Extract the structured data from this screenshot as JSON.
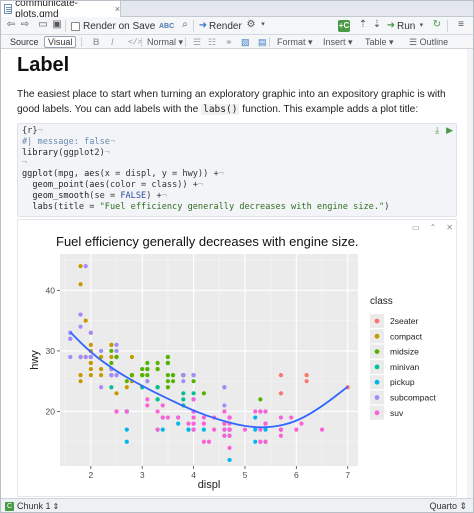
{
  "tab": {
    "filename": "communicate-plots.qmd",
    "close": "×"
  },
  "toolbar": {
    "render_on_save": "Render on Save",
    "render": "Render",
    "run": "Run",
    "abc": "ABC"
  },
  "editor_modes": {
    "source": "Source",
    "visual": "Visual"
  },
  "format_bar": {
    "bold": "B",
    "italic": "I",
    "underline": "U",
    "code": "</>",
    "style": "Normal",
    "format": "Format",
    "insert": "Insert",
    "table": "Table",
    "outline": "Outline"
  },
  "doc": {
    "heading": "Label",
    "para_pre": "The easiest place to start when turning an exploratory graphic into an expository graphic is with good labels. You can add labels with the ",
    "para_code": "labs()",
    "para_post": " function. This example adds a plot title:"
  },
  "code": {
    "header": "{r}",
    "line1": "#| message: false",
    "line2a": "library",
    "line2b": "(ggplot2)",
    "line4a": "ggplot",
    "line4b": "(mpg, ",
    "line4c": "aes",
    "line4d": "(x = displ, y = hwy)) +",
    "line5a": "  geom_point",
    "line5b": "(",
    "line5c": "aes",
    "line5d": "(color = class)) +",
    "line6a": "  geom_smooth",
    "line6b": "(se = ",
    "line6c": "FALSE",
    "line6d": ") +",
    "line7a": "  labs",
    "line7b": "(title = ",
    "line7c": "\"Fuel efficiency generally decreases with engine size.\"",
    "line7d": ")"
  },
  "status": {
    "chunk": "Chunk 1",
    "language": "Quarto"
  },
  "chart_data": {
    "type": "scatter",
    "title": "Fuel efficiency generally decreases with engine size.",
    "xlabel": "displ",
    "ylabel": "hwy",
    "xlim": [
      1.4,
      7.2
    ],
    "ylim": [
      11,
      46
    ],
    "xticks": [
      2,
      3,
      4,
      5,
      6,
      7
    ],
    "yticks": [
      20,
      30,
      40
    ],
    "legend_title": "class",
    "legend_position": "right",
    "series": [
      {
        "name": "2seater",
        "color": "#F8766D",
        "points": [
          [
            5.7,
            26
          ],
          [
            5.7,
            23
          ],
          [
            6.2,
            26
          ],
          [
            6.2,
            25
          ],
          [
            7.0,
            24
          ]
        ]
      },
      {
        "name": "compact",
        "color": "#C49A00",
        "points": [
          [
            1.8,
            29
          ],
          [
            1.8,
            29
          ],
          [
            2.0,
            31
          ],
          [
            2.0,
            30
          ],
          [
            2.8,
            26
          ],
          [
            2.8,
            26
          ],
          [
            3.1,
            27
          ],
          [
            1.8,
            26
          ],
          [
            1.8,
            25
          ],
          [
            2.0,
            28
          ],
          [
            2.0,
            27
          ],
          [
            2.8,
            25
          ],
          [
            2.2,
            27
          ],
          [
            2.2,
            29
          ],
          [
            2.4,
            31
          ],
          [
            2.4,
            31
          ],
          [
            3.0,
            26
          ],
          [
            3.0,
            26
          ],
          [
            3.3,
            27
          ],
          [
            1.8,
            44
          ],
          [
            1.8,
            41
          ],
          [
            1.9,
            29
          ],
          [
            2.0,
            26
          ],
          [
            2.0,
            28
          ],
          [
            2.5,
            29
          ],
          [
            2.5,
            29
          ],
          [
            2.5,
            23
          ],
          [
            2.7,
            24
          ],
          [
            2.8,
            29
          ],
          [
            2.2,
            26
          ],
          [
            2.4,
            29
          ],
          [
            2.4,
            27
          ],
          [
            3.0,
            24
          ],
          [
            2.0,
            33
          ],
          [
            1.9,
            35
          ]
        ]
      },
      {
        "name": "midsize",
        "color": "#53B400",
        "points": [
          [
            2.8,
            26
          ],
          [
            3.1,
            27
          ],
          [
            3.1,
            28
          ],
          [
            2.4,
            27
          ],
          [
            2.4,
            30
          ],
          [
            3.1,
            26
          ],
          [
            3.5,
            29
          ],
          [
            3.6,
            26
          ],
          [
            3.5,
            28
          ],
          [
            3.6,
            26
          ],
          [
            3.8,
            26
          ],
          [
            3.8,
            26
          ],
          [
            4.0,
            26
          ],
          [
            2.5,
            29
          ],
          [
            2.5,
            29
          ],
          [
            3.5,
            28
          ],
          [
            3.6,
            25
          ],
          [
            3.5,
            28
          ],
          [
            3.5,
            29
          ],
          [
            3.3,
            27
          ],
          [
            3.0,
            26
          ],
          [
            3.5,
            24
          ],
          [
            4.2,
            23
          ],
          [
            4.6,
            24
          ],
          [
            5.3,
            22
          ],
          [
            2.4,
            28
          ],
          [
            2.4,
            26
          ],
          [
            3.0,
            26
          ],
          [
            3.5,
            25
          ],
          [
            3.3,
            24
          ],
          [
            3.8,
            26
          ],
          [
            3.8,
            26
          ],
          [
            4.0,
            25
          ],
          [
            2.4,
            26
          ],
          [
            2.7,
            25
          ],
          [
            3.1,
            25
          ],
          [
            3.5,
            26
          ],
          [
            3.3,
            28
          ],
          [
            3.0,
            27
          ],
          [
            3.5,
            28
          ]
        ]
      },
      {
        "name": "minivan",
        "color": "#00C094",
        "points": [
          [
            2.4,
            24
          ],
          [
            3.0,
            24
          ],
          [
            3.3,
            22
          ],
          [
            3.3,
            22
          ],
          [
            3.3,
            24
          ],
          [
            3.3,
            24
          ],
          [
            3.3,
            17
          ],
          [
            3.8,
            22
          ],
          [
            3.8,
            21
          ],
          [
            3.8,
            23
          ],
          [
            4.0,
            23
          ]
        ]
      },
      {
        "name": "pickup",
        "color": "#00B6EB",
        "points": [
          [
            2.7,
            20
          ],
          [
            2.7,
            17
          ],
          [
            2.7,
            20
          ],
          [
            3.4,
            19
          ],
          [
            3.4,
            17
          ],
          [
            4.0,
            17
          ],
          [
            4.7,
            17
          ],
          [
            4.7,
            16
          ],
          [
            4.7,
            17
          ],
          [
            5.7,
            17
          ],
          [
            3.7,
            19
          ],
          [
            3.7,
            18
          ],
          [
            3.9,
            17
          ],
          [
            3.9,
            17
          ],
          [
            4.7,
            19
          ],
          [
            4.7,
            12
          ],
          [
            4.7,
            17
          ],
          [
            5.2,
            17
          ],
          [
            5.2,
            15
          ],
          [
            4.2,
            17
          ],
          [
            4.6,
            17
          ],
          [
            4.6,
            16
          ],
          [
            5.4,
            17
          ],
          [
            5.4,
            15
          ],
          [
            2.7,
            15
          ],
          [
            2.7,
            20
          ],
          [
            4.0,
            20
          ],
          [
            4.0,
            22
          ],
          [
            4.7,
            17
          ],
          [
            5.2,
            19
          ]
        ]
      },
      {
        "name": "subcompact",
        "color": "#A58AFF",
        "points": [
          [
            1.6,
            33
          ],
          [
            1.6,
            32
          ],
          [
            1.6,
            32
          ],
          [
            1.6,
            29
          ],
          [
            1.6,
            32
          ],
          [
            1.8,
            34
          ],
          [
            1.8,
            36
          ],
          [
            1.8,
            36
          ],
          [
            2.0,
            29
          ],
          [
            2.4,
            26
          ],
          [
            2.4,
            27
          ],
          [
            2.5,
            30
          ],
          [
            2.5,
            31
          ],
          [
            2.5,
            26
          ],
          [
            3.8,
            26
          ],
          [
            3.8,
            25
          ],
          [
            4.0,
            26
          ],
          [
            4.6,
            24
          ],
          [
            4.6,
            21
          ],
          [
            5.4,
            20
          ],
          [
            2.2,
            24
          ],
          [
            2.5,
            26
          ],
          [
            2.2,
            30
          ],
          [
            2.0,
            33
          ],
          [
            1.9,
            44
          ],
          [
            1.9,
            29
          ],
          [
            2.0,
            29
          ],
          [
            2.0,
            29
          ],
          [
            2.5,
            26
          ],
          [
            1.8,
            29
          ],
          [
            1.6,
            33
          ],
          [
            2.0,
            29
          ],
          [
            3.1,
            25
          ]
        ]
      },
      {
        "name": "suv",
        "color": "#FB61D7",
        "points": [
          [
            5.3,
            20
          ],
          [
            5.3,
            15
          ],
          [
            5.3,
            20
          ],
          [
            5.7,
            17
          ],
          [
            6.5,
            17
          ],
          [
            4.7,
            19
          ],
          [
            4.7,
            17
          ],
          [
            4.7,
            19
          ],
          [
            5.2,
            20
          ],
          [
            5.7,
            19
          ],
          [
            5.9,
            19
          ],
          [
            4.7,
            17
          ],
          [
            4.7,
            14
          ],
          [
            4.7,
            19
          ],
          [
            5.3,
            15
          ],
          [
            5.3,
            17
          ],
          [
            5.7,
            17
          ],
          [
            6.0,
            17
          ],
          [
            4.0,
            17
          ],
          [
            4.0,
            19
          ],
          [
            4.6,
            17
          ],
          [
            5.0,
            17
          ],
          [
            4.2,
            15
          ],
          [
            4.4,
            17
          ],
          [
            4.6,
            16
          ],
          [
            5.4,
            15
          ],
          [
            5.4,
            18
          ],
          [
            5.4,
            18
          ],
          [
            4.0,
            19
          ],
          [
            4.7,
            18
          ],
          [
            4.7,
            17
          ],
          [
            5.7,
            16
          ],
          [
            6.1,
            18
          ],
          [
            4.0,
            18
          ],
          [
            4.2,
            19
          ],
          [
            4.4,
            19
          ],
          [
            4.6,
            18
          ],
          [
            3.3,
            17
          ],
          [
            3.5,
            19
          ],
          [
            3.9,
            18
          ],
          [
            4.7,
            16
          ],
          [
            4.0,
            18
          ],
          [
            4.6,
            20
          ],
          [
            4.7,
            19
          ],
          [
            4.0,
            20
          ],
          [
            4.2,
            18
          ],
          [
            2.5,
            20
          ],
          [
            2.5,
            20
          ],
          [
            3.1,
            21
          ],
          [
            3.1,
            22
          ],
          [
            3.3,
            20
          ],
          [
            3.7,
            19
          ],
          [
            4.3,
            15
          ],
          [
            5.4,
            20
          ],
          [
            3.4,
            19
          ],
          [
            3.4,
            21
          ],
          [
            4.7,
            19
          ],
          [
            4.0,
            20
          ],
          [
            4.0,
            22
          ],
          [
            4.7,
            19
          ],
          [
            2.7,
            20
          ]
        ]
      }
    ],
    "smooth": {
      "name": "geom_smooth",
      "color": "#3366FF",
      "points": [
        [
          1.6,
          33.1
        ],
        [
          2.0,
          29.7
        ],
        [
          2.5,
          26.6
        ],
        [
          3.0,
          24.2
        ],
        [
          3.5,
          22.1
        ],
        [
          4.0,
          20.1
        ],
        [
          4.5,
          18.6
        ],
        [
          5.0,
          17.5
        ],
        [
          5.5,
          17.3
        ],
        [
          6.0,
          18.3
        ],
        [
          6.5,
          20.8
        ],
        [
          7.0,
          24.1
        ]
      ]
    }
  }
}
